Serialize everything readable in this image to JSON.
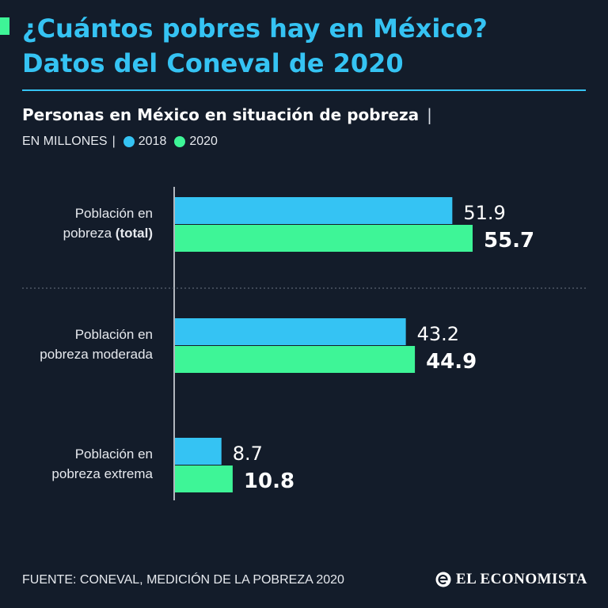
{
  "header": {
    "title_line1": "¿Cuántos pobres hay en México?",
    "title_line2": "Datos del Coneval de 2020",
    "subtitle": "Personas en México en situación de pobreza",
    "subtitle_separator": "|",
    "units": "EN MILLONES",
    "units_separator": "|"
  },
  "colors": {
    "background": "#131c2a",
    "accent": "#3ef597",
    "title": "#35c3f3",
    "series_2018": "#35c3f3",
    "series_2020": "#3ef597"
  },
  "chart_data": {
    "type": "bar",
    "orientation": "horizontal",
    "title": "Personas en México en situación de pobreza",
    "units": "EN MILLONES",
    "categories": [
      {
        "line1": "Población en",
        "line2_plain": "pobreza ",
        "line2_bold": "(total)"
      },
      {
        "line1": "Población en",
        "line2_plain": "pobreza moderada",
        "line2_bold": ""
      },
      {
        "line1": "Población en",
        "line2_plain": "pobreza extrema",
        "line2_bold": ""
      }
    ],
    "series": [
      {
        "name": "2018",
        "values": [
          51.9,
          43.2,
          8.7
        ],
        "labels": [
          "51.9",
          "43.2",
          "8.7"
        ]
      },
      {
        "name": "2020",
        "values": [
          55.7,
          44.9,
          10.8
        ],
        "labels": [
          "55.7",
          "44.9",
          "10.8"
        ]
      }
    ],
    "xlim": [
      0,
      60
    ],
    "grid": false,
    "legend": "top-left"
  },
  "footer": {
    "source": "FUENTE: CONEVAL, MEDICIÓN DE LA POBREZA 2020",
    "brand": "EL ECONOMISTA"
  }
}
